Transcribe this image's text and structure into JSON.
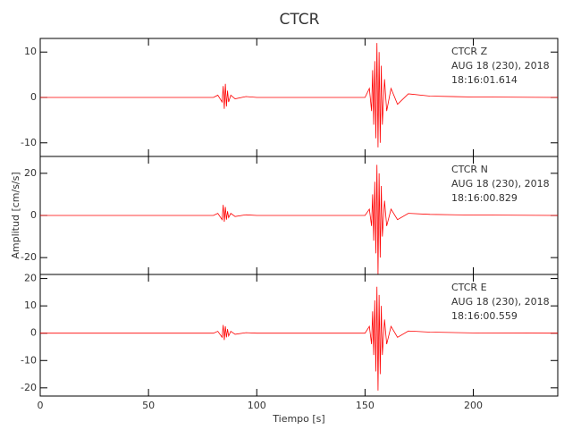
{
  "chart_data": [
    {
      "type": "line",
      "title": "CTCR",
      "annotations": [
        "CTCR   Z",
        "AUG 18 (230), 2018",
        "18:16:01.614"
      ],
      "xlim": [
        0,
        239
      ],
      "ylim": [
        -13,
        13
      ],
      "yticks": [
        -10,
        0,
        10
      ],
      "series": [
        {
          "color": "#ff0000",
          "x": [
            0,
            80,
            82,
            84,
            84.5,
            85,
            85.5,
            86,
            86.5,
            87,
            88,
            90,
            95,
            100,
            150,
            152,
            153,
            153.5,
            154,
            154.5,
            155,
            155.5,
            156,
            156.5,
            157,
            157.5,
            158,
            159,
            160,
            162,
            165,
            170,
            180,
            200,
            239
          ],
          "values": [
            0,
            0,
            0.5,
            -1,
            2.5,
            -2.5,
            3,
            -2,
            1.5,
            -1,
            0.5,
            -0.3,
            0.2,
            0,
            0,
            2,
            -3,
            6,
            -6,
            8,
            -9,
            12,
            -11,
            10,
            -10,
            7,
            -6,
            4,
            -3,
            2,
            -1.5,
            0.8,
            0.3,
            0.1,
            0
          ]
        }
      ]
    },
    {
      "type": "line",
      "ylabel": "Amplitud [cm/s/s]",
      "annotations": [
        "CTCR   N",
        "AUG 18 (230), 2018",
        "18:16:00.829"
      ],
      "xlim": [
        0,
        239
      ],
      "ylim": [
        -28,
        28
      ],
      "yticks": [
        -20,
        0,
        20
      ],
      "series": [
        {
          "color": "#ff0000",
          "x": [
            0,
            80,
            82,
            84,
            84.5,
            85,
            85.5,
            86,
            86.5,
            87,
            88,
            90,
            95,
            100,
            150,
            152,
            153,
            153.5,
            154,
            154.5,
            155,
            155.5,
            156,
            156.5,
            157,
            157.5,
            158,
            159,
            160,
            162,
            165,
            170,
            180,
            200,
            239
          ],
          "values": [
            0,
            0,
            1,
            -2,
            5,
            -3,
            4,
            -2,
            2,
            -1,
            1,
            -0.5,
            0.3,
            0,
            0,
            3,
            -5,
            10,
            -12,
            16,
            -18,
            24,
            -28,
            20,
            -20,
            14,
            -10,
            7,
            -5,
            3,
            -2,
            1,
            0.5,
            0.2,
            0
          ]
        }
      ]
    },
    {
      "type": "line",
      "xlabel": "Tiempo [s]",
      "annotations": [
        "CTCR   E",
        "AUG 18 (230), 2018",
        "18:16:00.559"
      ],
      "xlim": [
        0,
        239
      ],
      "xticks": [
        0,
        50,
        100,
        150,
        200
      ],
      "ylim": [
        -23,
        21.5
      ],
      "yticks": [
        -20,
        -10,
        0,
        10,
        20
      ],
      "series": [
        {
          "color": "#ff0000",
          "x": [
            0,
            80,
            82,
            84,
            84.5,
            85,
            85.5,
            86,
            86.5,
            87,
            88,
            90,
            95,
            100,
            150,
            152,
            153,
            153.5,
            154,
            154.5,
            155,
            155.5,
            156,
            156.5,
            157,
            157.5,
            158,
            159,
            160,
            162,
            165,
            170,
            180,
            200,
            239
          ],
          "values": [
            0,
            0,
            0.7,
            -1.5,
            3,
            -2.5,
            2.5,
            -1.5,
            1.5,
            -1,
            0.7,
            -0.4,
            0.2,
            0,
            0,
            2.5,
            -4,
            8,
            -8,
            12,
            -14,
            17,
            -21,
            14,
            -15,
            10,
            -8,
            5,
            -4,
            2.5,
            -1.5,
            0.8,
            0.4,
            0.1,
            0
          ]
        }
      ]
    }
  ]
}
